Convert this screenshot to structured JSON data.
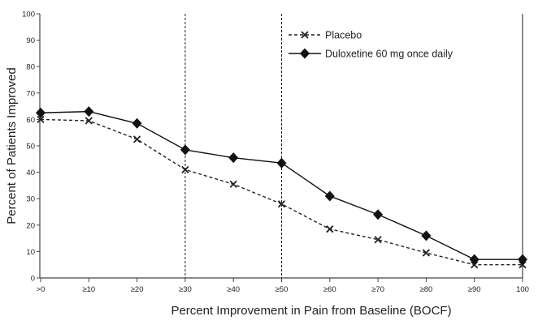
{
  "chart_data": {
    "type": "line",
    "xlabel": "Percent Improvement in Pain from Baseline (BOCF)",
    "ylabel": "Percent of Patients Improved",
    "categories": [
      ">0",
      "≥10",
      "≥20",
      "≥30",
      "≥40",
      "≥50",
      "≥60",
      "≥70",
      "≥80",
      "≥90",
      "100"
    ],
    "ylim": [
      0,
      100
    ],
    "yticks": [
      0,
      10,
      20,
      30,
      40,
      50,
      60,
      70,
      80,
      90,
      100
    ],
    "grid": false,
    "reference_lines_at": [
      "≥30",
      "≥50"
    ],
    "legend_position": "top-right",
    "series": [
      {
        "name": "Placebo",
        "style": "dashed",
        "marker": "x",
        "color": "#222222",
        "values": [
          60,
          59.5,
          52.5,
          41,
          35.5,
          28,
          18.5,
          14.5,
          9.5,
          5,
          5
        ]
      },
      {
        "name": "Duloxetine 60 mg once daily",
        "style": "solid",
        "marker": "diamond",
        "color": "#111111",
        "values": [
          62.5,
          63,
          58.5,
          48.5,
          45.5,
          43.5,
          31,
          24,
          16,
          7,
          7
        ]
      }
    ]
  }
}
